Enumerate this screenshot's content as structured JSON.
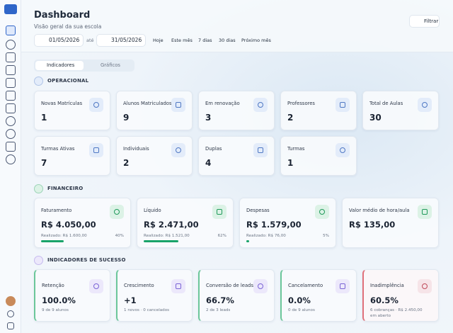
{
  "header": {
    "title": "Dashboard",
    "subtitle": "Visão geral da sua escola",
    "filter_button": "Filtrar"
  },
  "date_range": {
    "start": "01/05/2026",
    "separator": "até",
    "end": "31/05/2026",
    "presets": [
      "Hoje",
      "Este mês",
      "7 dias",
      "30 dias",
      "Próximo mês"
    ]
  },
  "tabs": [
    "Indicadores",
    "Gráficos"
  ],
  "sections": [
    {
      "title": "OPERACIONAL",
      "cards": [
        {
          "label": "Novas Matrículas",
          "value": 1
        },
        {
          "label": "Alunos Matriculados",
          "value": 9
        },
        {
          "label": "Em renovação",
          "value": 3
        },
        {
          "label": "Professores",
          "value": 2
        },
        {
          "label": "Total de Aulas",
          "value": 30
        },
        {
          "label": "Turmas Ativas",
          "value": 7
        },
        {
          "label": "Individuais",
          "value": 2
        },
        {
          "label": "Duplas",
          "value": 4
        },
        {
          "label": "Turmas",
          "value": 1
        }
      ]
    },
    {
      "title": "FINANCEIRO",
      "cards": [
        {
          "label": "Faturamento",
          "value": "R$ 4.050,00",
          "realized": "Realizado: R$ 1.600,00",
          "percent": 40,
          "percent_label": "40%"
        },
        {
          "label": "Líquido",
          "value": "R$ 2.471,00",
          "realized": "Realizado: R$ 1.521,00",
          "percent": 62,
          "percent_label": "62%"
        },
        {
          "label": "Despesas",
          "value": "R$ 1.579,00",
          "realized": "Realizado: R$ 76,00",
          "percent": 5,
          "percent_label": "5%"
        },
        {
          "label": "Valor médio de hora/aula",
          "value": "R$ 135,00"
        }
      ]
    },
    {
      "title": "INDICADORES DE SUCESSO",
      "cards": [
        {
          "label": "Retenção",
          "value": "100.0%",
          "detail": "9 de 9 alunos"
        },
        {
          "label": "Crescimento",
          "value": "+1",
          "detail": "1 novos · 0 cancelados"
        },
        {
          "label": "Conversão de leads",
          "value": "66.7%",
          "detail": "2 de 3 leads"
        },
        {
          "label": "Cancelamento",
          "value": "0.0%",
          "detail": "0 de 9 alunos"
        },
        {
          "label": "Inadimplência",
          "value": "60.5%",
          "detail": "6 cobranças · R$ 2.450,00 em aberto"
        }
      ]
    }
  ]
}
